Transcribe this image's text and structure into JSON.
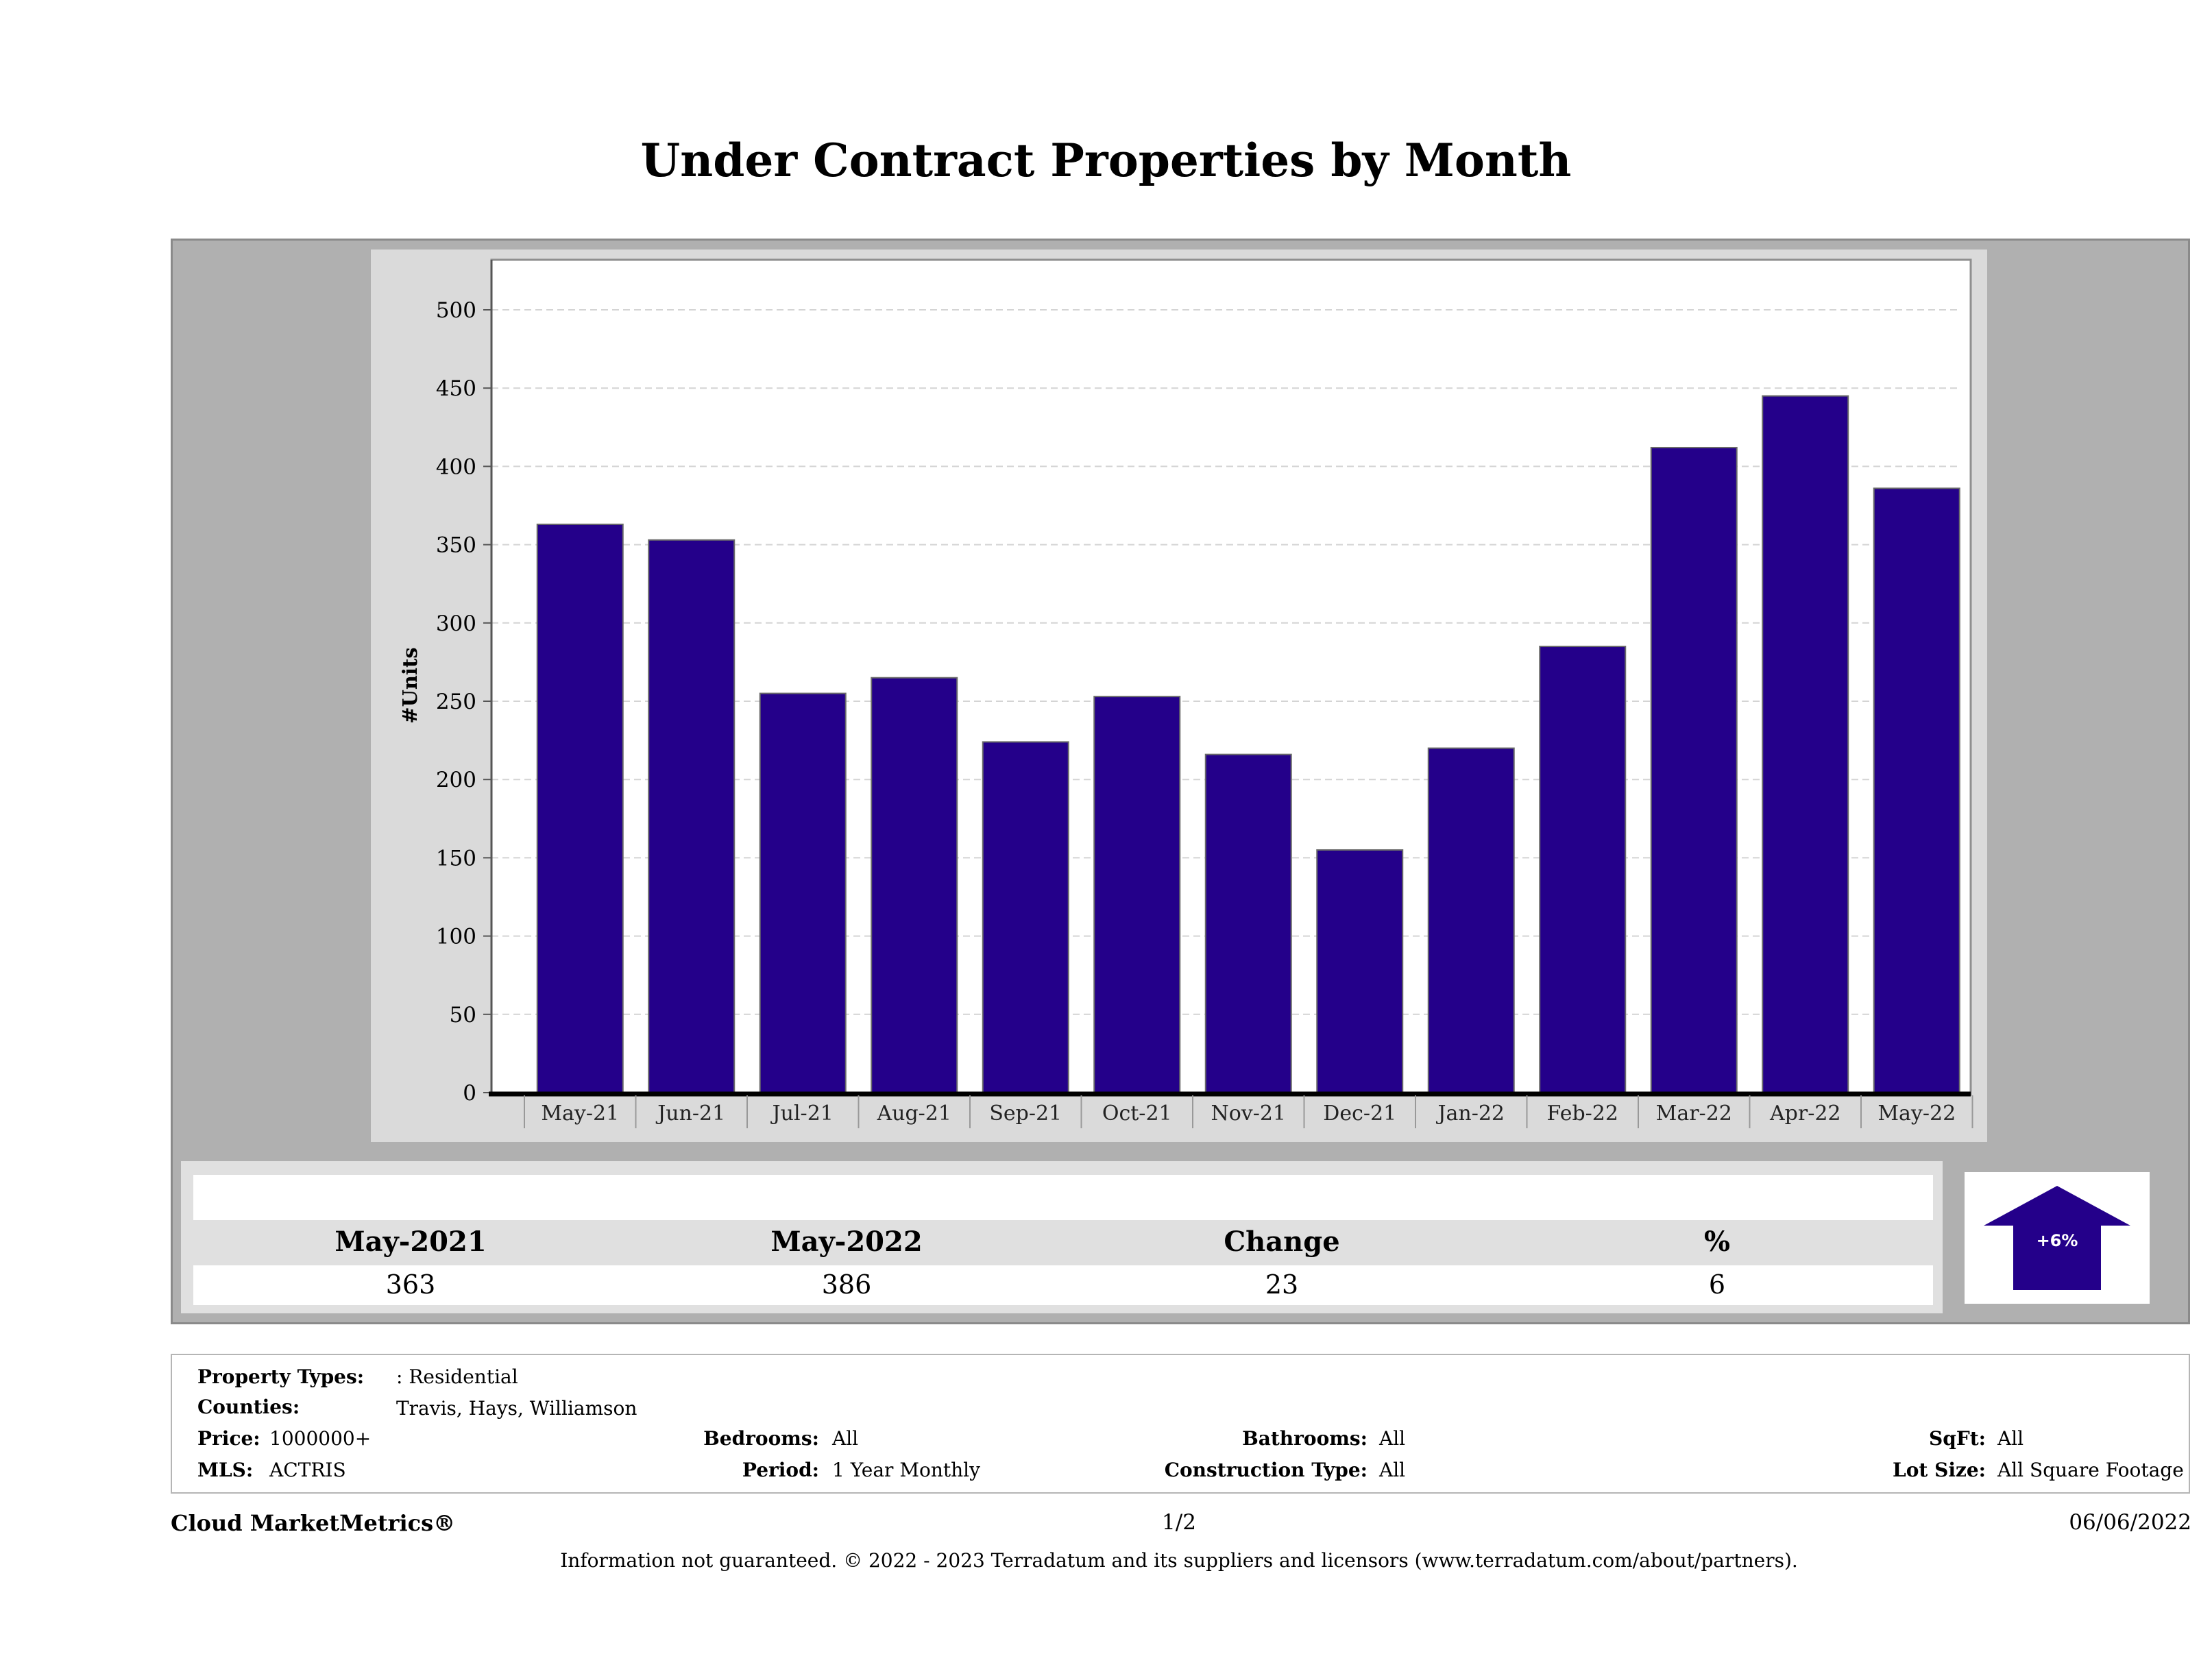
{
  "title": "Under Contract Properties by Month",
  "chart_data": {
    "type": "bar",
    "ylabel": "#Units",
    "xlabel": "",
    "ylim": [
      0,
      530
    ],
    "yticks": [
      0,
      50,
      100,
      150,
      200,
      250,
      300,
      350,
      400,
      450,
      500
    ],
    "grid": true,
    "bar_color": "#24008a",
    "categories": [
      "May-21",
      "Jun-21",
      "Jul-21",
      "Aug-21",
      "Sep-21",
      "Oct-21",
      "Nov-21",
      "Dec-21",
      "Jan-22",
      "Feb-22",
      "Mar-22",
      "Apr-22",
      "May-22"
    ],
    "values": [
      363,
      353,
      255,
      265,
      224,
      253,
      216,
      155,
      220,
      285,
      412,
      445,
      386
    ]
  },
  "summary": {
    "headers": [
      "May-2021",
      "May-2022",
      "Change",
      "%"
    ],
    "values": [
      "363",
      "386",
      "23",
      "6"
    ],
    "arrow_label": "+6%",
    "arrow_color": "#24008a"
  },
  "info": {
    "property_types_label": "Property Types:",
    "property_types_value": ": Residential",
    "counties_label": "Counties:",
    "counties_value": "Travis, Hays, Williamson",
    "price_label": "Price:",
    "price_value": "1000000+",
    "mls_label": "MLS:",
    "mls_value": "ACTRIS",
    "bedrooms_label": "Bedrooms:",
    "bedrooms_value": "All",
    "period_label": "Period:",
    "period_value": "1 Year Monthly",
    "bathrooms_label": "Bathrooms:",
    "bathrooms_value": "All",
    "construction_label": "Construction Type:",
    "construction_value": "All",
    "sqft_label": "SqFt:",
    "sqft_value": "All",
    "lotsize_label": "Lot Size:",
    "lotsize_value": "All Square Footage"
  },
  "footer": {
    "brand": "Cloud MarketMetrics®",
    "page": "1/2",
    "date": "06/06/2022",
    "disclaimer": "Information not guaranteed. © 2022 - 2023 Terradatum and its suppliers and licensors (www.terradatum.com/about/partners)."
  }
}
